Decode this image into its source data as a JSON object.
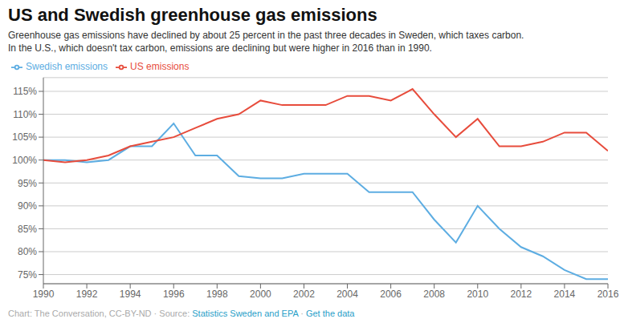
{
  "chart_data": {
    "type": "line",
    "title": "US and Swedish greenhouse gas emissions",
    "subtitle": "Greenhouse gas emissions have declined by about 25 percent in the past three decades in Sweden, which taxes carbon.\nIn the U.S., which doesn't tax carbon, emissions are declining but were higher in 2016 than in 1990.",
    "footnote": [
      {
        "text": "Chart: The Conversation, CC-BY-ND · Source: ",
        "color": "#aaaaaa"
      },
      {
        "text": "Statistics Sweden and EPA",
        "color": "#2aa0c8"
      },
      {
        "text": " · ",
        "color": "#aaaaaa"
      },
      {
        "text": "Get the data",
        "color": "#2aa0c8"
      }
    ],
    "x": [
      1990,
      1991,
      1992,
      1993,
      1994,
      1995,
      1996,
      1997,
      1998,
      1999,
      2000,
      2001,
      2002,
      2003,
      2004,
      2005,
      2006,
      2007,
      2008,
      2009,
      2010,
      2011,
      2012,
      2013,
      2014,
      2015,
      2016
    ],
    "series": [
      {
        "name": "Swedish emissions",
        "color": "#5DADE2",
        "values": [
          100,
          100,
          99.5,
          100,
          103,
          103,
          108,
          101,
          101,
          96.5,
          96,
          96,
          97,
          97,
          97,
          93,
          93,
          93,
          87,
          82,
          90,
          85,
          81,
          79,
          76,
          74,
          74
        ]
      },
      {
        "name": "US emissions",
        "color": "#E74C3C",
        "values": [
          100,
          99.5,
          100,
          101,
          103,
          104,
          105,
          107,
          109,
          110,
          113,
          112,
          112,
          112,
          114,
          114,
          113,
          115.5,
          110,
          105,
          109,
          103,
          103,
          104,
          106,
          106,
          102
        ]
      }
    ],
    "xlim": [
      1990,
      2016
    ],
    "xticks": [
      1990,
      1992,
      1994,
      1996,
      1998,
      2000,
      2002,
      2004,
      2006,
      2008,
      2010,
      2012,
      2014,
      2016
    ],
    "ylim": [
      73,
      118
    ],
    "yticks": [
      {
        "value": 75,
        "label": "75%"
      },
      {
        "value": 80,
        "label": "80%"
      },
      {
        "value": 85,
        "label": "85%"
      },
      {
        "value": 90,
        "label": "90%"
      },
      {
        "value": 95,
        "label": "95%"
      },
      {
        "value": 100,
        "label": "100%"
      },
      {
        "value": 105,
        "label": "105%"
      },
      {
        "value": 110,
        "label": "110%"
      },
      {
        "value": 115,
        "label": "115%"
      }
    ],
    "grid": true,
    "legend": "top left"
  }
}
